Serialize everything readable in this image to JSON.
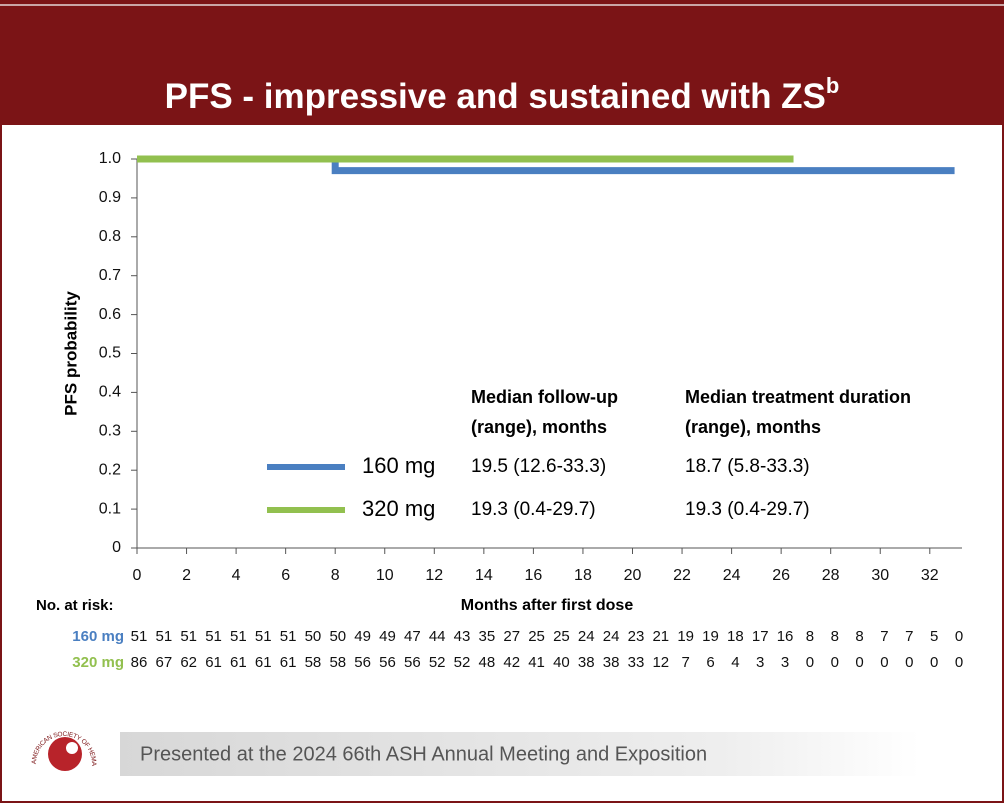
{
  "chart_data": {
    "type": "line",
    "title": "PFS - impressive and sustained with ZS",
    "title_sup": "b",
    "ylabel": "PFS probability",
    "xlabel": "Months after first dose",
    "xlim": [
      0,
      33.3
    ],
    "xticks": [
      0,
      2,
      4,
      6,
      8,
      10,
      12,
      14,
      16,
      18,
      20,
      22,
      24,
      26,
      28,
      30,
      32
    ],
    "ylim": [
      0,
      1
    ],
    "yticks": [
      0,
      0.1,
      0.2,
      0.3,
      0.4,
      0.5,
      0.6,
      0.7,
      0.8,
      0.9,
      {
        "value": 1,
        "label": "1.0"
      }
    ],
    "table_headers": [
      [
        "Median follow-up",
        "(range), months"
      ],
      [
        "Median treatment duration",
        "(range), months"
      ]
    ],
    "risk_label": "No. at risk:",
    "series": [
      {
        "name": "160 mg",
        "color": "#4a7fc1",
        "x": [
          0,
          8,
          8,
          33
        ],
        "values": [
          1,
          1,
          0.97,
          0.97
        ],
        "median_followup": "19.5 (12.6-33.3)",
        "median_treatment": "18.7 (5.8-33.3)",
        "at_risk": [
          51,
          51,
          51,
          51,
          51,
          51,
          51,
          50,
          50,
          49,
          49,
          47,
          44,
          43,
          35,
          27,
          25,
          25,
          24,
          24,
          23,
          21,
          19,
          19,
          18,
          17,
          16,
          8,
          8,
          8,
          7,
          7,
          5,
          0
        ]
      },
      {
        "name": "320 mg",
        "color": "#92c04f",
        "x": [
          0,
          26.5
        ],
        "values": [
          1,
          1
        ],
        "median_followup": "19.3 (0.4-29.7)",
        "median_treatment": "19.3 (0.4-29.7)",
        "at_risk": [
          86,
          67,
          62,
          61,
          61,
          61,
          61,
          58,
          58,
          56,
          56,
          56,
          52,
          52,
          48,
          42,
          41,
          40,
          38,
          38,
          33,
          12,
          7,
          6,
          4,
          3,
          3,
          0,
          0,
          0,
          0,
          0,
          0,
          0
        ]
      }
    ]
  },
  "footer": "Presented at the 2024 66th ASH Annual Meeting and Exposition",
  "logo_text": "AMERICAN SOCIETY OF HEMATOLOGY"
}
